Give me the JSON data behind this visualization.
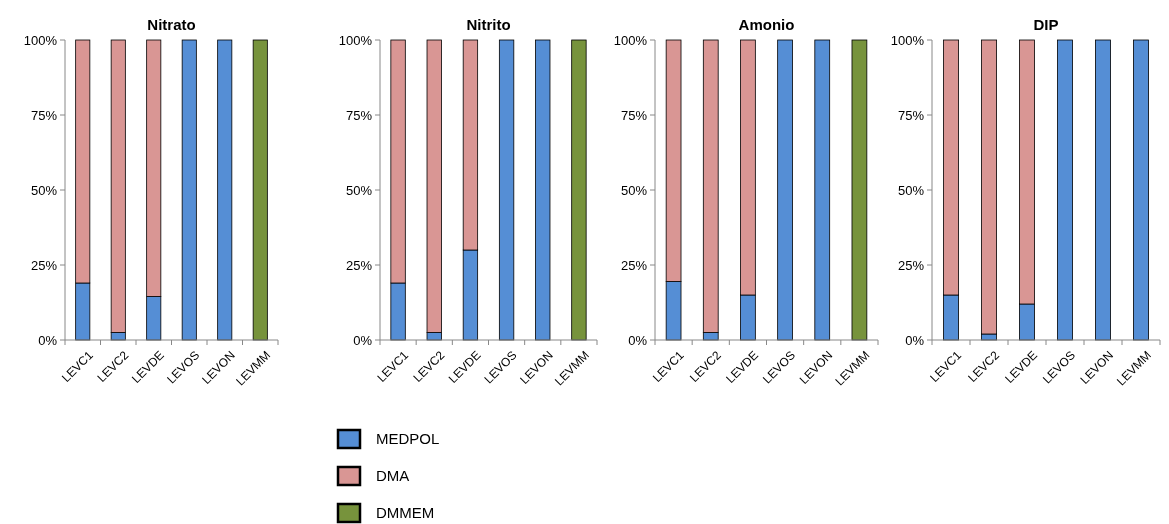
{
  "chart_data": [
    {
      "type": "bar",
      "title": "Nitrato",
      "stacked": true,
      "categories": [
        "LEVC1",
        "LEVC2",
        "LEVDE",
        "LEVOS",
        "LEVON",
        "LEVMM"
      ],
      "ylim": [
        0,
        100
      ],
      "yticks": [
        {
          "value": 0,
          "label": "0%"
        },
        {
          "value": 25,
          "label": "25%"
        },
        {
          "value": 50,
          "label": "50%"
        },
        {
          "value": 75,
          "label": "75%"
        },
        {
          "value": 100,
          "label": "100%"
        }
      ],
      "series": [
        {
          "color": "#558ed5",
          "values": [
            19,
            2.5,
            14.5,
            100,
            100,
            0
          ]
        },
        {
          "color": "#d99694",
          "values": [
            81,
            97.5,
            85.5,
            0,
            0,
            0
          ]
        },
        {
          "color": "#77933c",
          "values": [
            0,
            0,
            0,
            0,
            0,
            100
          ]
        }
      ]
    },
    {
      "type": "bar",
      "title": "Nitrito",
      "stacked": true,
      "legend": "bottom",
      "categories": [
        "LEVC1",
        "LEVC2",
        "LEVDE",
        "LEVOS",
        "LEVON",
        "LEVMM"
      ],
      "ylim": [
        0,
        100
      ],
      "yticks": [
        {
          "value": 0,
          "label": "0%"
        },
        {
          "value": 25,
          "label": "25%"
        },
        {
          "value": 50,
          "label": "50%"
        },
        {
          "value": 75,
          "label": "75%"
        },
        {
          "value": 100,
          "label": "100%"
        }
      ],
      "series": [
        {
          "name": "MEDPOL",
          "color": "#558ed5",
          "values": [
            19,
            2.5,
            30,
            100,
            100,
            0
          ]
        },
        {
          "name": "DMA",
          "color": "#d99694",
          "values": [
            81,
            97.5,
            70,
            0,
            0,
            0
          ]
        },
        {
          "name": "DMMEM",
          "color": "#77933c",
          "values": [
            0,
            0,
            0,
            0,
            0,
            100
          ]
        }
      ]
    },
    {
      "type": "bar",
      "title": "Amonio",
      "stacked": true,
      "categories": [
        "LEVC1",
        "LEVC2",
        "LEVDE",
        "LEVOS",
        "LEVON",
        "LEVMM"
      ],
      "ylim": [
        0,
        100
      ],
      "yticks": [
        {
          "value": 0,
          "label": "0%"
        },
        {
          "value": 25,
          "label": "25%"
        },
        {
          "value": 50,
          "label": "50%"
        },
        {
          "value": 75,
          "label": "75%"
        },
        {
          "value": 100,
          "label": "100%"
        }
      ],
      "series": [
        {
          "color": "#558ed5",
          "values": [
            19.5,
            2.5,
            15,
            100,
            100,
            0
          ]
        },
        {
          "color": "#d99694",
          "values": [
            80.5,
            97.5,
            85,
            0,
            0,
            0
          ]
        },
        {
          "color": "#77933c",
          "values": [
            0,
            0,
            0,
            0,
            0,
            100
          ]
        }
      ]
    },
    {
      "type": "bar",
      "title": "DIP",
      "stacked": true,
      "categories": [
        "LEVC1",
        "LEVC2",
        "LEVDE",
        "LEVOS",
        "LEVON",
        "LEVMM"
      ],
      "ylim": [
        0,
        100
      ],
      "yticks": [
        {
          "value": 0,
          "label": "0%"
        },
        {
          "value": 25,
          "label": "25%"
        },
        {
          "value": 50,
          "label": "50%"
        },
        {
          "value": 75,
          "label": "75%"
        },
        {
          "value": 100,
          "label": "100%"
        }
      ],
      "series": [
        {
          "color": "#558ed5",
          "values": [
            15,
            2,
            12,
            100,
            100,
            100
          ]
        },
        {
          "color": "#d99694",
          "values": [
            85,
            98,
            88,
            0,
            0,
            0
          ]
        }
      ]
    }
  ]
}
